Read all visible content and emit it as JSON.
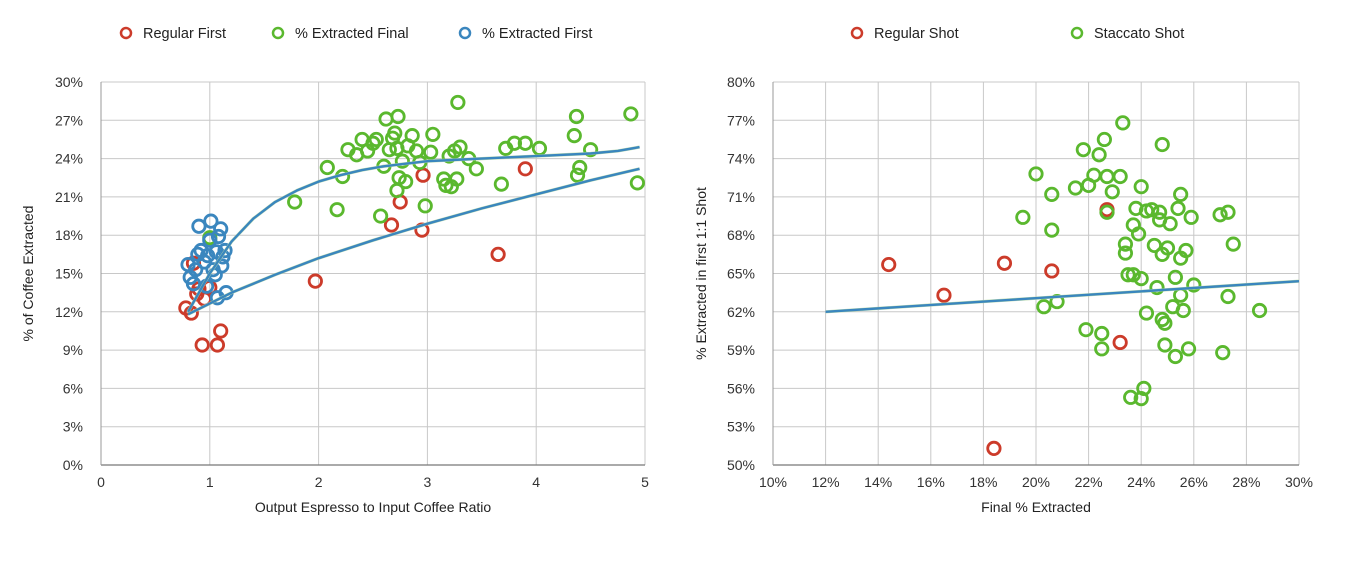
{
  "chart_data": [
    {
      "type": "scatter",
      "xlabel": "Output Espresso to Input Coffee Ratio",
      "ylabel": "% of Coffee Extracted",
      "xlim": [
        0,
        5
      ],
      "ylim": [
        0,
        30
      ],
      "x_ticks": [
        "0",
        "1",
        "2",
        "3",
        "4",
        "5"
      ],
      "y_ticks": [
        "0%",
        "3%",
        "6%",
        "9%",
        "12%",
        "15%",
        "18%",
        "21%",
        "24%",
        "27%",
        "30%"
      ],
      "grid": true,
      "legend_position": "top",
      "series": [
        {
          "name": "Regular First",
          "color": "#cc3b2a",
          "points": [
            [
              0.78,
              12.3
            ],
            [
              0.83,
              11.9
            ],
            [
              0.85,
              15.8
            ],
            [
              0.88,
              13.4
            ],
            [
              0.9,
              13.8
            ],
            [
              0.93,
              9.4
            ],
            [
              0.95,
              13.0
            ],
            [
              1.0,
              13.9
            ],
            [
              1.07,
              9.4
            ],
            [
              1.1,
              10.5
            ],
            [
              1.97,
              14.4
            ],
            [
              2.67,
              18.8
            ],
            [
              2.75,
              20.6
            ],
            [
              2.95,
              18.4
            ],
            [
              2.96,
              22.7
            ],
            [
              3.65,
              16.5
            ],
            [
              3.9,
              23.2
            ]
          ]
        },
        {
          "name": "% Extracted Final",
          "color": "#5ab82e",
          "points": [
            [
              1.0,
              17.8
            ],
            [
              1.78,
              20.6
            ],
            [
              2.08,
              23.3
            ],
            [
              2.17,
              20.0
            ],
            [
              2.22,
              22.6
            ],
            [
              2.27,
              24.7
            ],
            [
              2.35,
              24.3
            ],
            [
              2.4,
              25.5
            ],
            [
              2.45,
              24.6
            ],
            [
              2.5,
              25.2
            ],
            [
              2.53,
              25.5
            ],
            [
              2.57,
              19.5
            ],
            [
              2.6,
              23.4
            ],
            [
              2.62,
              27.1
            ],
            [
              2.65,
              24.7
            ],
            [
              2.68,
              25.6
            ],
            [
              2.7,
              26.0
            ],
            [
              2.72,
              24.8
            ],
            [
              2.72,
              21.5
            ],
            [
              2.73,
              27.3
            ],
            [
              2.74,
              22.5
            ],
            [
              2.77,
              23.8
            ],
            [
              2.8,
              22.2
            ],
            [
              2.82,
              25.0
            ],
            [
              2.86,
              25.8
            ],
            [
              2.9,
              24.6
            ],
            [
              2.93,
              23.7
            ],
            [
              2.98,
              20.3
            ],
            [
              3.03,
              24.5
            ],
            [
              3.05,
              25.9
            ],
            [
              3.15,
              22.4
            ],
            [
              3.17,
              21.9
            ],
            [
              3.2,
              24.2
            ],
            [
              3.22,
              21.8
            ],
            [
              3.25,
              24.6
            ],
            [
              3.27,
              22.4
            ],
            [
              3.28,
              28.4
            ],
            [
              3.3,
              24.9
            ],
            [
              3.38,
              24.0
            ],
            [
              3.45,
              23.2
            ],
            [
              3.68,
              22.0
            ],
            [
              3.72,
              24.8
            ],
            [
              3.8,
              25.2
            ],
            [
              3.9,
              25.2
            ],
            [
              4.03,
              24.8
            ],
            [
              4.35,
              25.8
            ],
            [
              4.37,
              27.3
            ],
            [
              4.38,
              22.7
            ],
            [
              4.4,
              23.3
            ],
            [
              4.5,
              24.7
            ],
            [
              4.87,
              27.5
            ],
            [
              4.93,
              22.1
            ]
          ]
        },
        {
          "name": "% Extracted First",
          "color": "#3a86be",
          "points": [
            [
              0.8,
              15.7
            ],
            [
              0.82,
              14.7
            ],
            [
              0.85,
              14.2
            ],
            [
              0.87,
              15.3
            ],
            [
              0.89,
              16.5
            ],
            [
              0.9,
              18.7
            ],
            [
              0.92,
              16.8
            ],
            [
              0.95,
              15.9
            ],
            [
              0.97,
              14.0
            ],
            [
              0.98,
              16.4
            ],
            [
              1.0,
              17.6
            ],
            [
              1.01,
              19.1
            ],
            [
              1.03,
              15.3
            ],
            [
              1.05,
              14.9
            ],
            [
              1.06,
              16.7
            ],
            [
              1.07,
              13.1
            ],
            [
              1.08,
              17.9
            ],
            [
              1.1,
              18.5
            ],
            [
              1.11,
              15.6
            ],
            [
              1.12,
              16.3
            ],
            [
              1.14,
              16.8
            ],
            [
              1.15,
              13.5
            ]
          ]
        }
      ],
      "trendlines": [
        {
          "name": "fit-final",
          "color": "#3a86be",
          "x": [
            0.8,
            1.0,
            1.2,
            1.4,
            1.6,
            1.8,
            2.0,
            2.2,
            2.4,
            2.6,
            2.8,
            3.0,
            3.25,
            3.5,
            3.75,
            4.0,
            4.25,
            4.5,
            4.75,
            4.95
          ],
          "y": [
            12.0,
            15.0,
            17.5,
            19.3,
            20.6,
            21.5,
            22.2,
            22.7,
            23.1,
            23.4,
            23.6,
            23.8,
            23.9,
            24.0,
            24.1,
            24.2,
            24.3,
            24.4,
            24.6,
            24.9
          ]
        },
        {
          "name": "fit-first",
          "color": "#3a86be",
          "x": [
            0.8,
            1.2,
            1.6,
            2.0,
            2.5,
            3.0,
            3.5,
            4.0,
            4.5,
            4.95
          ],
          "y": [
            11.8,
            13.5,
            14.9,
            16.2,
            17.6,
            18.9,
            20.1,
            21.2,
            22.3,
            23.2
          ]
        }
      ]
    },
    {
      "type": "scatter",
      "xlabel": "Final % Extracted",
      "ylabel": "% Extracted in first 1:1 Shot",
      "xlim": [
        10,
        30
      ],
      "ylim": [
        50,
        80
      ],
      "x_ticks": [
        "10%",
        "12%",
        "14%",
        "16%",
        "18%",
        "20%",
        "22%",
        "24%",
        "26%",
        "28%",
        "30%"
      ],
      "y_ticks": [
        "50%",
        "53%",
        "56%",
        "59%",
        "62%",
        "65%",
        "68%",
        "71%",
        "74%",
        "77%",
        "80%"
      ],
      "grid": true,
      "legend_position": "top",
      "series": [
        {
          "name": "Regular Shot",
          "color": "#cc3b2a",
          "points": [
            [
              14.4,
              65.7
            ],
            [
              16.5,
              63.3
            ],
            [
              18.4,
              51.3
            ],
            [
              18.8,
              65.8
            ],
            [
              20.6,
              65.2
            ],
            [
              22.7,
              70.0
            ],
            [
              23.2,
              59.6
            ]
          ]
        },
        {
          "name": "Staccato Shot",
          "color": "#5ab82e",
          "points": [
            [
              19.5,
              69.4
            ],
            [
              20.0,
              72.8
            ],
            [
              20.3,
              62.4
            ],
            [
              20.6,
              68.4
            ],
            [
              20.6,
              71.2
            ],
            [
              20.8,
              62.8
            ],
            [
              21.5,
              71.7
            ],
            [
              21.8,
              74.7
            ],
            [
              21.9,
              60.6
            ],
            [
              22.0,
              71.9
            ],
            [
              22.2,
              72.7
            ],
            [
              22.4,
              74.3
            ],
            [
              22.5,
              60.3
            ],
            [
              22.5,
              59.1
            ],
            [
              22.6,
              75.5
            ],
            [
              22.7,
              69.8
            ],
            [
              22.7,
              72.6
            ],
            [
              22.9,
              71.4
            ],
            [
              23.2,
              72.6
            ],
            [
              23.3,
              76.8
            ],
            [
              23.4,
              66.6
            ],
            [
              23.4,
              67.3
            ],
            [
              23.5,
              64.9
            ],
            [
              23.6,
              55.3
            ],
            [
              23.7,
              64.9
            ],
            [
              23.7,
              68.8
            ],
            [
              23.8,
              70.1
            ],
            [
              23.9,
              68.1
            ],
            [
              24.0,
              64.6
            ],
            [
              24.0,
              55.2
            ],
            [
              24.0,
              71.8
            ],
            [
              24.1,
              56.0
            ],
            [
              24.2,
              69.9
            ],
            [
              24.2,
              61.9
            ],
            [
              24.4,
              70.0
            ],
            [
              24.5,
              67.2
            ],
            [
              24.6,
              63.9
            ],
            [
              24.7,
              69.8
            ],
            [
              24.7,
              69.2
            ],
            [
              24.8,
              66.5
            ],
            [
              24.8,
              61.4
            ],
            [
              24.8,
              75.1
            ],
            [
              24.9,
              61.1
            ],
            [
              24.9,
              59.4
            ],
            [
              25.0,
              67.0
            ],
            [
              25.1,
              68.9
            ],
            [
              25.2,
              62.4
            ],
            [
              25.3,
              64.7
            ],
            [
              25.3,
              58.5
            ],
            [
              25.4,
              70.1
            ],
            [
              25.5,
              66.2
            ],
            [
              25.5,
              63.3
            ],
            [
              25.5,
              71.2
            ],
            [
              25.6,
              62.1
            ],
            [
              25.7,
              66.8
            ],
            [
              25.8,
              59.1
            ],
            [
              25.9,
              69.4
            ],
            [
              26.0,
              64.1
            ],
            [
              27.0,
              69.6
            ],
            [
              27.1,
              58.8
            ],
            [
              27.3,
              69.8
            ],
            [
              27.3,
              63.2
            ],
            [
              27.5,
              67.3
            ],
            [
              28.5,
              62.1
            ]
          ]
        }
      ],
      "trendlines": [
        {
          "name": "fit",
          "color": "#3a86be",
          "x": [
            12,
            30
          ],
          "y": [
            62.0,
            64.4
          ]
        }
      ]
    }
  ]
}
